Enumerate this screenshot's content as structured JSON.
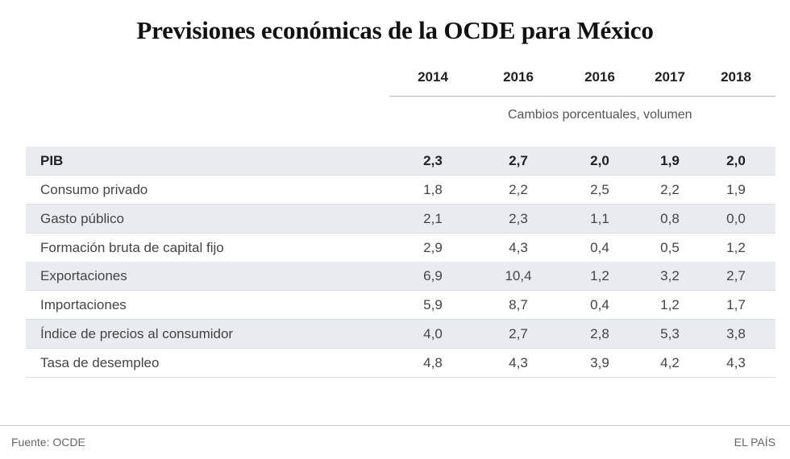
{
  "chart_data": {
    "type": "table",
    "title": "Previsiones económicas de la OCDE para México",
    "subtitle": "Cambios porcentuales, volumen",
    "columns": [
      "2014",
      "2016",
      "2016",
      "2017",
      "2018"
    ],
    "rows": [
      {
        "label": "PIB",
        "values": [
          "2,3",
          "2,7",
          "2,0",
          "1,9",
          "2,0"
        ],
        "bold": true
      },
      {
        "label": "Consumo privado",
        "values": [
          "1,8",
          "2,2",
          "2,5",
          "2,2",
          "1,9"
        ]
      },
      {
        "label": "Gasto público",
        "values": [
          "2,1",
          "2,3",
          "1,1",
          "0,8",
          "0,0"
        ]
      },
      {
        "label": "Formación bruta de capital fijo",
        "values": [
          "2,9",
          "4,3",
          "0,4",
          "0,5",
          "1,2"
        ]
      },
      {
        "label": "Exportaciones",
        "values": [
          "6,9",
          "10,4",
          "1,2",
          "3,2",
          "2,7"
        ]
      },
      {
        "label": "Importaciones",
        "values": [
          "5,9",
          "8,7",
          "0,4",
          "1,2",
          "1,7"
        ]
      },
      {
        "label": "Índice de precios al consumidor",
        "values": [
          "4,0",
          "2,7",
          "2,8",
          "5,3",
          "3,8"
        ]
      },
      {
        "label": "Tasa de desempleo",
        "values": [
          "4,8",
          "4,3",
          "3,9",
          "4,2",
          "4,3"
        ]
      }
    ]
  },
  "footer": {
    "source": "Fuente: OCDE",
    "brand": "EL PAÍS"
  }
}
